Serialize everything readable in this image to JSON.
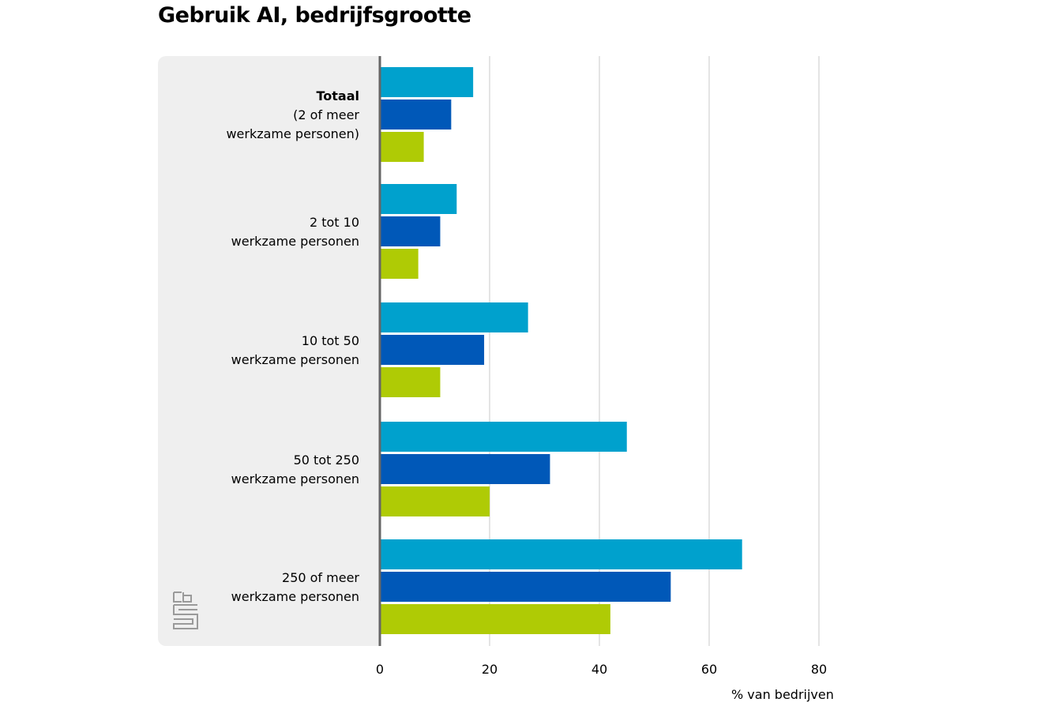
{
  "title": "Gebruik AI, bedrijfsgrootte",
  "chart_data": {
    "type": "bar",
    "orientation": "horizontal",
    "title": "Gebruik AI, bedrijfsgrootte",
    "xlabel": "% van bedrijven",
    "ylabel": "",
    "xlim": [
      0,
      80
    ],
    "xticks": [
      0,
      20,
      40,
      60,
      80
    ],
    "grid": true,
    "categories": [
      [
        "Totaal",
        "(2 of meer",
        "werkzame personen)"
      ],
      [
        "2 tot 10",
        "werkzame personen"
      ],
      [
        "10 tot 50",
        "werkzame personen"
      ],
      [
        "50 tot 250",
        "werkzame personen"
      ],
      [
        "250 of meer",
        "werkzame personen"
      ]
    ],
    "series": [
      {
        "color": "#00a1cd",
        "values": [
          17,
          14,
          27,
          45,
          66
        ]
      },
      {
        "color": "#0058b8",
        "values": [
          13,
          11,
          19,
          31,
          53
        ]
      },
      {
        "color": "#afcb05",
        "values": [
          8,
          7,
          11,
          20,
          42
        ]
      }
    ]
  },
  "logo": "cbs"
}
